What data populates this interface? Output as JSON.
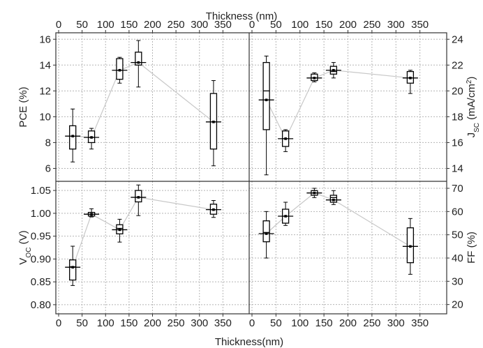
{
  "chart_data": {
    "type": "box",
    "top_axis_label": "Thickness (nm)",
    "bottom_axis_label": "Thickness(nm)",
    "x_ticks": [
      "0",
      "50",
      "100",
      "150",
      "200",
      "250",
      "300",
      "350"
    ],
    "xlim": [
      0,
      400
    ],
    "connector_color": "#c8c8c8",
    "panels": [
      {
        "id": "pce",
        "ylabel": "PCE (%)",
        "ylabel_side": "left",
        "ylim": [
          5,
          16.5
        ],
        "y_ticks": [
          "6",
          "8",
          "10",
          "12",
          "14",
          "16"
        ],
        "y_tick_values": [
          6,
          8,
          10,
          12,
          14,
          16
        ],
        "boxes": [
          {
            "x": 30,
            "min": 6.5,
            "q1": 7.5,
            "median": 8.5,
            "q3": 9.3,
            "max": 10.6,
            "mean": 8.5
          },
          {
            "x": 70,
            "min": 7.5,
            "q1": 8.0,
            "median": 8.4,
            "q3": 8.9,
            "max": 9.1,
            "mean": 8.4
          },
          {
            "x": 130,
            "min": 12.6,
            "q1": 12.9,
            "median": 13.6,
            "q3": 14.5,
            "max": 14.6,
            "mean": 13.6
          },
          {
            "x": 170,
            "min": 12.3,
            "q1": 14.0,
            "median": 14.2,
            "q3": 15.0,
            "max": 15.9,
            "mean": 14.2
          },
          {
            "x": 330,
            "min": 6.2,
            "q1": 7.5,
            "median": 9.6,
            "q3": 11.8,
            "max": 12.8,
            "mean": 9.6
          }
        ]
      },
      {
        "id": "jsc",
        "ylabel": "J",
        "ylabel_sub": "SC",
        "ylabel_rest": " (mA/cm",
        "ylabel_sup": "2",
        "ylabel_end": ")",
        "ylabel_side": "right",
        "ylim": [
          13,
          24.5
        ],
        "y_ticks": [
          "14",
          "16",
          "18",
          "20",
          "22",
          "24"
        ],
        "y_tick_values": [
          14,
          16,
          18,
          20,
          22,
          24
        ],
        "boxes": [
          {
            "x": 30,
            "min": 13.5,
            "q1": 17.0,
            "median": 20.0,
            "q3": 22.2,
            "max": 22.7,
            "mean": 19.3
          },
          {
            "x": 70,
            "min": 15.3,
            "q1": 15.7,
            "median": 16.3,
            "q3": 16.9,
            "max": 17.0,
            "mean": 16.3
          },
          {
            "x": 130,
            "min": 20.7,
            "q1": 20.8,
            "median": 21.0,
            "q3": 21.3,
            "max": 21.4,
            "mean": 21.0
          },
          {
            "x": 170,
            "min": 21.0,
            "q1": 21.3,
            "median": 21.5,
            "q3": 21.9,
            "max": 22.2,
            "mean": 21.6
          },
          {
            "x": 330,
            "min": 19.8,
            "q1": 20.6,
            "median": 21.0,
            "q3": 21.5,
            "max": 21.6,
            "mean": 21.0
          }
        ]
      },
      {
        "id": "voc",
        "ylabel": "V",
        "ylabel_sub": "OC",
        "ylabel_rest": " (V)",
        "ylabel_side": "left",
        "ylim": [
          0.78,
          1.07
        ],
        "y_ticks": [
          "0.80",
          "0.85",
          "0.90",
          "0.95",
          "1.00",
          "1.05"
        ],
        "y_tick_values": [
          0.8,
          0.85,
          0.9,
          0.95,
          1.0,
          1.05
        ],
        "boxes": [
          {
            "x": 30,
            "min": 0.842,
            "q1": 0.854,
            "median": 0.883,
            "q3": 0.898,
            "max": 0.928,
            "mean": 0.882
          },
          {
            "x": 70,
            "min": 0.992,
            "q1": 0.994,
            "median": 0.998,
            "q3": 1.002,
            "max": 1.01,
            "mean": 0.998
          },
          {
            "x": 130,
            "min": 0.937,
            "q1": 0.955,
            "median": 0.967,
            "q3": 0.975,
            "max": 0.987,
            "mean": 0.964
          },
          {
            "x": 170,
            "min": 0.995,
            "q1": 1.025,
            "median": 1.035,
            "q3": 1.05,
            "max": 1.062,
            "mean": 1.035
          },
          {
            "x": 330,
            "min": 0.991,
            "q1": 0.998,
            "median": 1.008,
            "q3": 1.02,
            "max": 1.028,
            "mean": 1.008
          }
        ]
      },
      {
        "id": "ff",
        "ylabel": "FF (%)",
        "ylabel_side": "right",
        "ylim": [
          16,
          73
        ],
        "y_ticks": [
          "20",
          "30",
          "40",
          "50",
          "60",
          "70"
        ],
        "y_tick_values": [
          20,
          30,
          40,
          50,
          60,
          70
        ],
        "boxes": [
          {
            "x": 30,
            "min": 40,
            "q1": 47,
            "median": 51,
            "q3": 56,
            "max": 60,
            "mean": 50.5
          },
          {
            "x": 70,
            "min": 54,
            "q1": 55,
            "median": 58,
            "q3": 61,
            "max": 64,
            "mean": 58
          },
          {
            "x": 130,
            "min": 66,
            "q1": 67,
            "median": 68,
            "q3": 69,
            "max": 70,
            "mean": 68
          },
          {
            "x": 170,
            "min": 63,
            "q1": 64,
            "median": 66,
            "q3": 67,
            "max": 69,
            "mean": 65
          },
          {
            "x": 330,
            "min": 33,
            "q1": 38,
            "median": 45,
            "q3": 53,
            "max": 57,
            "mean": 45
          }
        ]
      }
    ]
  }
}
